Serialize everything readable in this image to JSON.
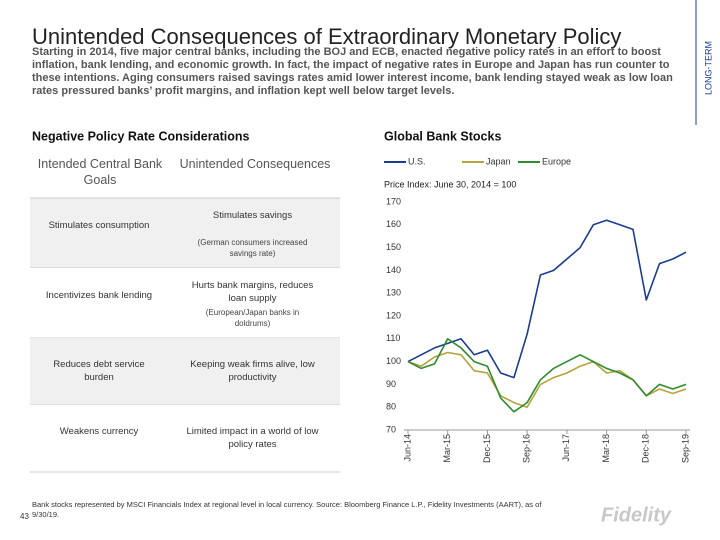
{
  "slide": {
    "title": "Unintended Consequences of Extraordinary Monetary Policy",
    "intro": "Starting in 2014, five major central banks, including the BOJ and ECB, enacted negative policy rates in an effort to boost inflation, bank lending, and economic growth. In fact, the impact of negative rates in Europe and Japan has run counter to these intentions. Aging consumers raised savings rates amid lower interest income, bank lending stayed weak as low loan rates pressured banks’ profit margins, and inflation kept well below target levels.",
    "side_label": "LONG-TERM",
    "footnote": "Bank stocks represented by MSCI Financials Index at regional level in local currency. Source: Bloomberg Finance L.P., Fidelity Investments (AART), as of 9/30/19.",
    "page_number": "43",
    "logo": "Fidelity"
  },
  "table": {
    "title": "Negative Policy Rate Considerations",
    "headers": [
      "Intended Central Bank Goals",
      "Unintended Consequences"
    ],
    "rows": [
      {
        "goal": "Stimulates consumption",
        "consequence": "Stimulates savings",
        "note": "(German consumers increased savings rate)"
      },
      {
        "goal": "Incentivizes bank lending",
        "consequence": "Hurts bank margins, reduces loan supply",
        "note": "(European/Japan banks in doldrums)"
      },
      {
        "goal": "Reduces debt service burden",
        "consequence": "Keeping weak firms alive, low productivity"
      },
      {
        "goal": "Weakens currency",
        "consequence": "Limited impact in a world of low policy rates"
      }
    ]
  },
  "chart_data": {
    "type": "line",
    "title": "Global Bank Stocks",
    "subtitle": "Price Index: June 30, 2014 = 100",
    "categories": [
      "Jun-14",
      null,
      null,
      "Mar-15",
      null,
      null,
      "Dec-15",
      null,
      null,
      "Sep-16",
      null,
      null,
      "Jun-17",
      null,
      null,
      "Mar-18",
      null,
      null,
      "Dec-18",
      null,
      null,
      "Sep-19"
    ],
    "series": [
      {
        "name": "U.S.",
        "color": "#1b3d8f",
        "values": [
          100,
          103,
          106,
          108,
          110,
          103,
          105,
          95,
          93,
          112,
          138,
          140,
          145,
          150,
          160,
          162,
          160,
          158,
          127,
          143,
          145,
          148
        ]
      },
      {
        "name": "Japan",
        "color": "#b8a23a",
        "values": [
          100,
          98,
          102,
          104,
          103,
          96,
          95,
          85,
          82,
          80,
          90,
          93,
          95,
          98,
          100,
          95,
          96,
          92,
          85,
          88,
          86,
          88
        ]
      },
      {
        "name": "Europe",
        "color": "#2e8b2e",
        "values": [
          100,
          97,
          99,
          110,
          106,
          100,
          98,
          84,
          78,
          82,
          92,
          97,
          100,
          103,
          100,
          97,
          95,
          92,
          85,
          90,
          88,
          90
        ]
      }
    ],
    "ylim": [
      70,
      170
    ],
    "yticks": [
      70,
      80,
      90,
      100,
      110,
      120,
      130,
      140,
      150,
      160,
      170
    ],
    "grid": false
  }
}
